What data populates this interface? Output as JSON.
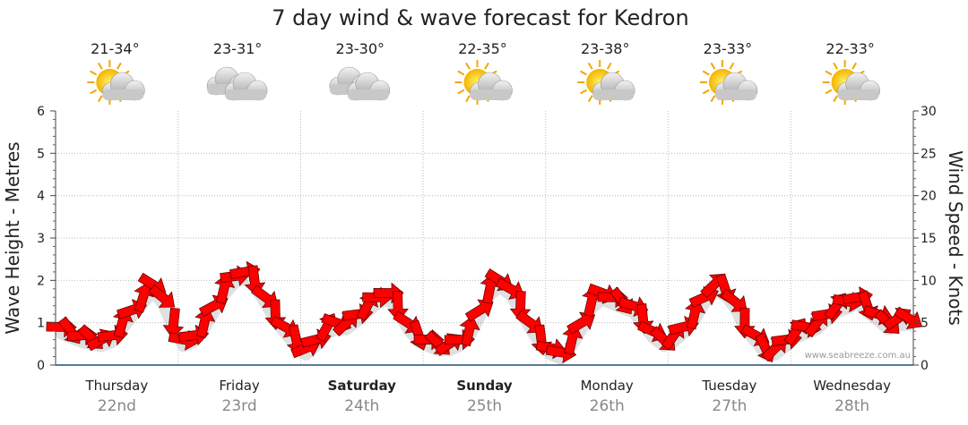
{
  "chart_data": {
    "type": "line",
    "title": "7 day wind & wave forecast for Kedron",
    "ylabel_left": "Wave Height - Metres",
    "ylabel_right": "Wind Speed - Knots",
    "ylim_left": [
      0,
      6
    ],
    "ylim_right": [
      0,
      30
    ],
    "yticks_left": [
      "0",
      "1",
      "2",
      "3",
      "4",
      "5",
      "6"
    ],
    "yticks_right": [
      "0",
      "5",
      "10",
      "15",
      "20",
      "25",
      "30"
    ],
    "grid": true,
    "watermark": "www.seabreeze.com.au",
    "days": [
      {
        "day": "Thursday",
        "date": "22nd",
        "temp": "21-34°",
        "weather": "partly-cloudy-icon",
        "bold": false
      },
      {
        "day": "Friday",
        "date": "23rd",
        "temp": "23-31°",
        "weather": "cloudy-icon",
        "bold": false
      },
      {
        "day": "Saturday",
        "date": "24th",
        "temp": "23-30°",
        "weather": "cloudy-icon",
        "bold": true
      },
      {
        "day": "Sunday",
        "date": "25th",
        "temp": "22-35°",
        "weather": "partly-cloudy-icon",
        "bold": true
      },
      {
        "day": "Monday",
        "date": "26th",
        "temp": "23-38°",
        "weather": "partly-cloudy-icon",
        "bold": false
      },
      {
        "day": "Tuesday",
        "date": "27th",
        "temp": "23-33°",
        "weather": "partly-cloudy-icon",
        "bold": false
      },
      {
        "day": "Wednesday",
        "date": "28th",
        "temp": "22-33°",
        "weather": "partly-cloudy-icon",
        "bold": false
      }
    ],
    "series": [
      {
        "measure": "wind speed (knots)",
        "color": "#ff0000",
        "marker": "wind-direction-arrow",
        "x_days": [
          0,
          0.08,
          0.17,
          0.25,
          0.33,
          0.42,
          0.5,
          0.58,
          0.67,
          0.75,
          0.83,
          0.92,
          1,
          1.08,
          1.17,
          1.25,
          1.33,
          1.42,
          1.5,
          1.58,
          1.67,
          1.75,
          1.83,
          1.92,
          2,
          2.08,
          2.17,
          2.25,
          2.33,
          2.42,
          2.5,
          2.58,
          2.67,
          2.75,
          2.83,
          2.92,
          3,
          3.08,
          3.17,
          3.25,
          3.33,
          3.42,
          3.5,
          3.58,
          3.67,
          3.75,
          3.83,
          3.92,
          4,
          4.08,
          4.17,
          4.25,
          4.33,
          4.42,
          4.5,
          4.58,
          4.67,
          4.75,
          4.83,
          4.92,
          5,
          5.08,
          5.17,
          5.25,
          5.33,
          5.42,
          5.5,
          5.58,
          5.67,
          5.75,
          5.83,
          5.92,
          6,
          6.08,
          6.17,
          6.25,
          6.33,
          6.42,
          6.5,
          6.58,
          6.67,
          6.75,
          6.83,
          6.92
        ],
        "values": [
          4.5,
          4,
          3.5,
          3.2,
          3,
          3.5,
          5,
          6.5,
          8,
          9.5,
          8,
          5,
          3,
          3.5,
          5,
          7,
          9,
          10.5,
          11,
          10,
          8,
          6,
          4.5,
          3,
          2,
          3,
          4.5,
          5,
          5,
          6,
          7,
          8,
          8.5,
          7,
          5,
          3.5,
          3,
          2.5,
          2.5,
          3,
          4,
          6.5,
          9,
          10,
          9,
          7,
          5,
          3,
          2,
          1.5,
          3,
          5,
          7.5,
          8.5,
          8,
          7.5,
          7,
          5.5,
          4,
          3,
          3.5,
          4.5,
          6,
          8,
          9.5,
          9,
          7.5,
          5,
          3.5,
          2,
          2,
          3,
          4,
          4.5,
          5,
          6,
          7,
          7.5,
          8,
          7,
          6,
          5,
          5.5,
          5.5
        ]
      }
    ]
  }
}
